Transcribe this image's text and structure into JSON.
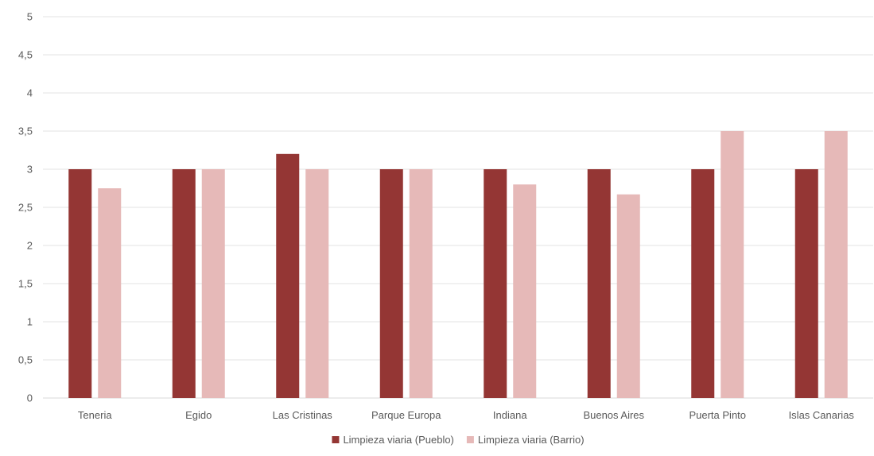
{
  "chart_data": {
    "type": "bar",
    "title": "",
    "xlabel": "",
    "ylabel": "",
    "categories": [
      "Teneria",
      "Egido",
      "Las Cristinas",
      "Parque Europa",
      "Indiana",
      "Buenos Aires",
      "Puerta Pinto",
      "Islas Canarias"
    ],
    "series": [
      {
        "name": "Limpieza viaria (Pueblo)",
        "color": "#943634",
        "values": [
          3,
          3,
          3.2,
          3,
          3,
          3,
          3,
          3
        ]
      },
      {
        "name": "Limpieza viaria (Barrio)",
        "color": "#E6B9B8",
        "values": [
          2.75,
          3,
          3,
          3,
          2.8,
          2.67,
          3.5,
          3.5
        ]
      }
    ],
    "ylim": [
      0,
      5
    ],
    "yticks": [
      "0",
      "0,5",
      "1",
      "1,5",
      "2",
      "2,5",
      "3",
      "3,5",
      "4",
      "4,5",
      "5"
    ],
    "grid": true,
    "legend_position": "bottom"
  }
}
